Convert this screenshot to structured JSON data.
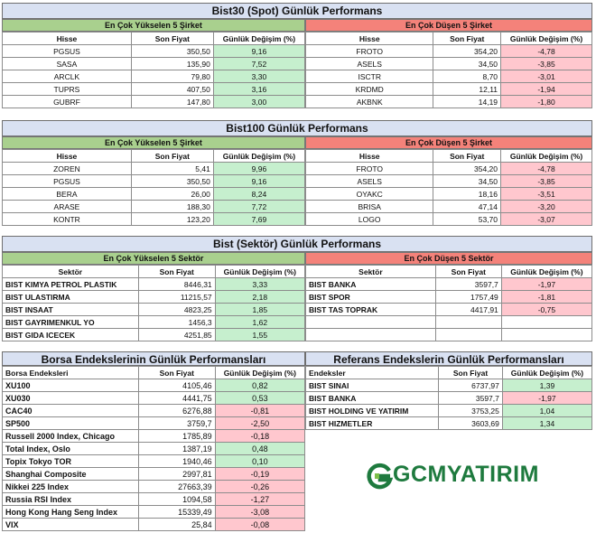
{
  "bist30": {
    "title": "Bist30 (Spot) Günlük Performans",
    "up_title": "En Çok Yükselen 5 Şirket",
    "down_title": "En Çok Düşen 5 Şirket",
    "headers": [
      "Hisse",
      "Son Fiyat",
      "Günlük Değişim (%)"
    ],
    "up_rows": [
      [
        "PGSUS",
        "350,50",
        "9,16"
      ],
      [
        "SASA",
        "135,90",
        "7,52"
      ],
      [
        "ARCLK",
        "79,80",
        "3,30"
      ],
      [
        "TUPRS",
        "407,50",
        "3,16"
      ],
      [
        "GUBRF",
        "147,80",
        "3,00"
      ]
    ],
    "down_rows": [
      [
        "FROTO",
        "354,20",
        "-4,78"
      ],
      [
        "ASELS",
        "34,50",
        "-3,85"
      ],
      [
        "ISCTR",
        "8,70",
        "-3,01"
      ],
      [
        "KRDMD",
        "12,11",
        "-1,94"
      ],
      [
        "AKBNK",
        "14,19",
        "-1,80"
      ]
    ]
  },
  "bist100": {
    "title": "Bist100 Günlük Performans",
    "up_title": "En Çok Yükselen 5 Şirket",
    "down_title": "En Çok Düşen 5 Şirket",
    "headers": [
      "Hisse",
      "Son Fiyat",
      "Günlük Değişim (%)"
    ],
    "up_rows": [
      [
        "ZOREN",
        "5,41",
        "9,96"
      ],
      [
        "PGSUS",
        "350,50",
        "9,16"
      ],
      [
        "BERA",
        "26,00",
        "8,24"
      ],
      [
        "ARASE",
        "188,30",
        "7,72"
      ],
      [
        "KONTR",
        "123,20",
        "7,69"
      ]
    ],
    "down_rows": [
      [
        "FROTO",
        "354,20",
        "-4,78"
      ],
      [
        "ASELS",
        "34,50",
        "-3,85"
      ],
      [
        "OYAKC",
        "18,16",
        "-3,51"
      ],
      [
        "BRISA",
        "47,14",
        "-3,20"
      ],
      [
        "LOGO",
        "53,70",
        "-3,07"
      ]
    ]
  },
  "sektor": {
    "title": "Bist (Sektör) Günlük Performans",
    "up_title": "En Çok Yükselen 5 Sektör",
    "down_title": "En Çok Düşen 5 Sektör",
    "up_headers": [
      "Sektör",
      "Son Fiyat",
      "Günlük Değişim (%)"
    ],
    "down_headers": [
      "Sektör",
      "Son Fiyat",
      "Günlük Değişim (%)"
    ],
    "up_rows": [
      [
        "BIST KIMYA PETROL PLASTIK",
        "8446,31",
        "3,33"
      ],
      [
        "BIST ULASTIRMA",
        "11215,57",
        "2,18"
      ],
      [
        "BIST INSAAT",
        "4823,25",
        "1,85"
      ],
      [
        "BIST GAYRIMENKUL YO",
        "1456,3",
        "1,62"
      ],
      [
        "BIST GIDA ICECEK",
        "4251,85",
        "1,55"
      ]
    ],
    "down_rows": [
      [
        "BIST BANKA",
        "3597,7",
        "-1,97"
      ],
      [
        "BIST SPOR",
        "1757,49",
        "-1,81"
      ],
      [
        "BIST TAS TOPRAK",
        "4417,91",
        "-0,75"
      ],
      [
        "",
        "",
        ""
      ],
      [
        "",
        "",
        ""
      ]
    ]
  },
  "borsa": {
    "title": "Borsa Endekslerinin Günlük Performansları",
    "headers": [
      "Borsa Endeksleri",
      "Son Fiyat",
      "Günlük Değişim (%)"
    ],
    "rows": [
      [
        "XU100",
        "4105,46",
        "0,82",
        "g"
      ],
      [
        "XU030",
        "4441,75",
        "0,53",
        "g"
      ],
      [
        "CAC40",
        "6276,88",
        "-0,81",
        "n"
      ],
      [
        "SP500",
        "3759,7",
        "-2,50",
        "n"
      ],
      [
        "Russell 2000 Index, Chicago",
        "1785,89",
        "-0,18",
        "n"
      ],
      [
        "Total Index, Oslo",
        "1387,19",
        "0,48",
        "g"
      ],
      [
        "Topix Tokyo TOR",
        "1940,46",
        "0,10",
        "g"
      ],
      [
        "Shanghai Composite",
        "2997,81",
        "-0,19",
        "n"
      ],
      [
        "Nikkei 225 Index",
        "27663,39",
        "-0,26",
        "n"
      ],
      [
        "Russia RSI Index",
        "1094,58",
        "-1,27",
        "n"
      ],
      [
        "Hong Kong Hang Seng Index",
        "15339,49",
        "-3,08",
        "n"
      ],
      [
        "VIX",
        "25,84",
        "-0,08",
        "n"
      ]
    ]
  },
  "referans": {
    "title": "Referans Endekslerin  Günlük Performansları",
    "headers": [
      "Endeksler",
      "Son Fiyat",
      "Günlük Değişim (%)"
    ],
    "rows": [
      [
        "BIST SINAI",
        "6737,97",
        "1,39",
        "g"
      ],
      [
        "BIST BANKA",
        "3597,7",
        "-1,97",
        "n"
      ],
      [
        "BIST HOLDING VE YATIRIM",
        "3753,25",
        "1,04",
        "g"
      ],
      [
        "BIST HIZMETLER",
        "3603,69",
        "1,34",
        "g"
      ]
    ]
  },
  "logo": {
    "text_a": "GCM",
    "text_b": "YATIRIM"
  },
  "colors": {
    "up": "#c6efce",
    "down": "#ffc7ce",
    "up_header": "#a9d08e",
    "down_header": "#f4827a",
    "title": "#d9e1f2",
    "logo": "#1e7a3e"
  }
}
